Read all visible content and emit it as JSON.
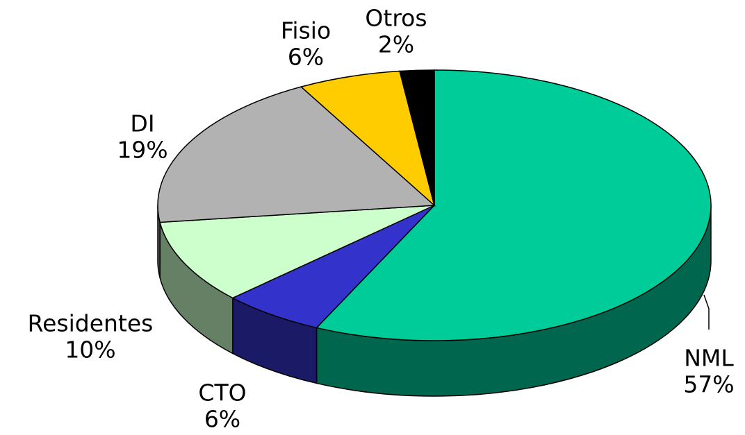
{
  "chart_data": {
    "type": "pie",
    "categories": [
      "NML",
      "CTO",
      "Residentes",
      "DI",
      "Fisio",
      "Otros"
    ],
    "values": [
      57,
      6,
      10,
      19,
      6,
      2
    ],
    "value_labels": [
      "57%",
      "6%",
      "10%",
      "19%",
      "6%",
      "2%"
    ],
    "colors": [
      "#00cc99",
      "#3333cc",
      "#ccffcc",
      "#b2b2b2",
      "#ffcc00",
      "#000000"
    ]
  }
}
